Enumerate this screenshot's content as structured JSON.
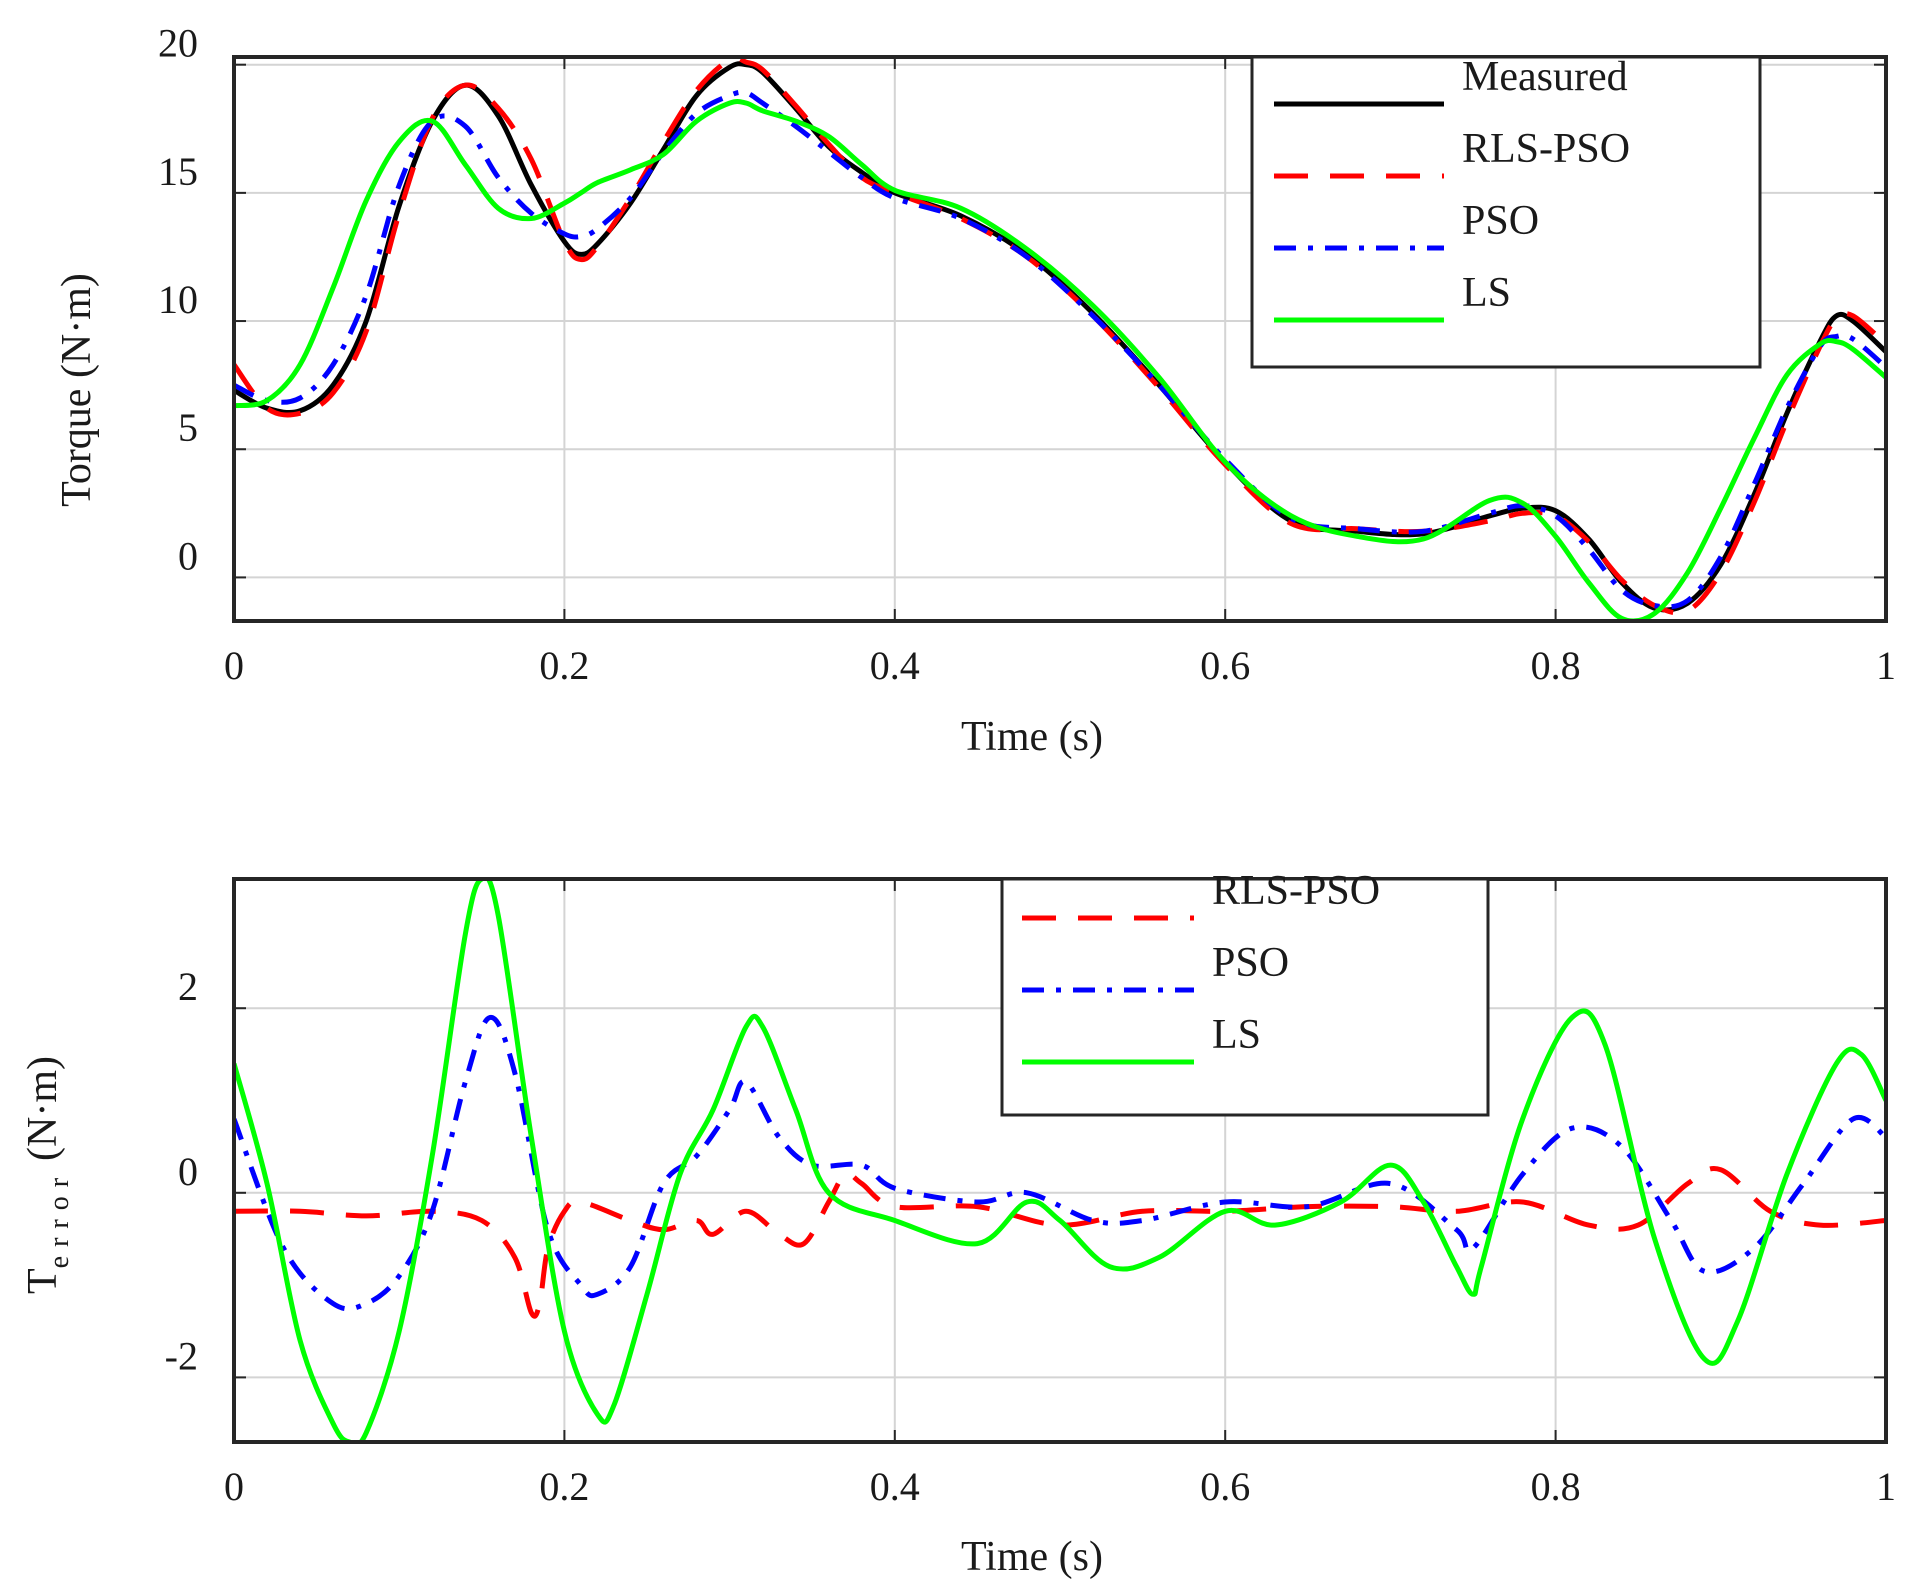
{
  "colors": {
    "measured": "#000000",
    "rls_pso": "#ff0000",
    "pso": "#0000ff",
    "ls": "#00ff00"
  },
  "chart_data": [
    {
      "type": "line",
      "xlabel": "Time (s)",
      "ylabel": "Torque (N·m)",
      "xlim": [
        0,
        1
      ],
      "ylim": [
        -1.7,
        20.3
      ],
      "xticks": [
        0,
        0.2,
        0.4,
        0.6,
        0.8,
        1
      ],
      "xtick_labels": [
        "0",
        "0.2",
        "0.4",
        "0.6",
        "0.8",
        "1"
      ],
      "yticks": [
        0,
        5,
        10,
        15,
        20
      ],
      "ytick_labels": [
        "0",
        "5",
        "10",
        "15",
        "20"
      ],
      "grid": true,
      "legend": {
        "location": "top-right",
        "entries": [
          "Measured",
          "RLS-PSO",
          "PSO",
          "LS"
        ]
      },
      "series": [
        {
          "name": "Measured",
          "color": "#000000",
          "style": "solid",
          "x": [
            0,
            0.02,
            0.04,
            0.06,
            0.08,
            0.1,
            0.12,
            0.14,
            0.16,
            0.18,
            0.2,
            0.21,
            0.22,
            0.24,
            0.26,
            0.28,
            0.3,
            0.31,
            0.32,
            0.34,
            0.36,
            0.38,
            0.4,
            0.44,
            0.48,
            0.52,
            0.56,
            0.6,
            0.64,
            0.68,
            0.72,
            0.76,
            0.78,
            0.8,
            0.82,
            0.84,
            0.86,
            0.88,
            0.9,
            0.92,
            0.94,
            0.96,
            0.97,
            0.98,
            1.0
          ],
          "values": [
            7.3,
            6.6,
            6.5,
            7.5,
            10.0,
            14.5,
            17.8,
            19.2,
            18.0,
            15.3,
            13.1,
            12.6,
            13.0,
            14.6,
            16.7,
            18.8,
            19.9,
            20.0,
            19.7,
            18.3,
            16.8,
            15.8,
            15.0,
            14.1,
            12.6,
            10.3,
            7.5,
            4.5,
            2.2,
            1.8,
            1.7,
            2.4,
            2.7,
            2.6,
            1.5,
            -0.2,
            -1.2,
            -1.0,
            0.5,
            3.2,
            6.4,
            9.2,
            10.2,
            10.0,
            8.8
          ]
        },
        {
          "name": "RLS-PSO",
          "color": "#ff0000",
          "style": "dashed",
          "x": [
            0,
            0.02,
            0.04,
            0.06,
            0.08,
            0.1,
            0.12,
            0.14,
            0.16,
            0.18,
            0.2,
            0.21,
            0.22,
            0.24,
            0.26,
            0.28,
            0.3,
            0.31,
            0.32,
            0.34,
            0.36,
            0.38,
            0.4,
            0.44,
            0.48,
            0.52,
            0.56,
            0.6,
            0.64,
            0.68,
            0.72,
            0.76,
            0.78,
            0.8,
            0.82,
            0.84,
            0.86,
            0.88,
            0.9,
            0.92,
            0.94,
            0.96,
            0.97,
            0.98,
            1.0
          ],
          "values": [
            8.3,
            6.6,
            6.4,
            7.2,
            9.6,
            14.2,
            17.9,
            19.2,
            18.3,
            16.3,
            13.1,
            12.4,
            12.9,
            14.8,
            17.0,
            19.0,
            20.2,
            20.1,
            19.8,
            18.4,
            16.9,
            15.6,
            15.0,
            14.0,
            12.5,
            10.2,
            7.4,
            4.4,
            2.1,
            1.9,
            1.8,
            2.2,
            2.5,
            2.4,
            1.4,
            -0.1,
            -1.1,
            -1.3,
            0.2,
            2.9,
            6.1,
            9.0,
            10.1,
            10.2,
            9.1
          ]
        },
        {
          "name": "PSO",
          "color": "#0000ff",
          "style": "dashdot",
          "x": [
            0,
            0.02,
            0.04,
            0.06,
            0.08,
            0.1,
            0.12,
            0.14,
            0.16,
            0.18,
            0.2,
            0.21,
            0.22,
            0.24,
            0.26,
            0.28,
            0.3,
            0.31,
            0.32,
            0.34,
            0.36,
            0.38,
            0.4,
            0.44,
            0.48,
            0.52,
            0.56,
            0.6,
            0.64,
            0.68,
            0.72,
            0.76,
            0.78,
            0.8,
            0.82,
            0.84,
            0.86,
            0.88,
            0.9,
            0.92,
            0.94,
            0.96,
            0.97,
            0.98,
            1.0
          ],
          "values": [
            7.5,
            6.9,
            7.0,
            8.3,
            11.0,
            15.3,
            17.8,
            17.6,
            15.6,
            14.2,
            13.4,
            13.3,
            13.6,
            14.8,
            16.6,
            18.1,
            18.8,
            18.9,
            18.5,
            17.6,
            16.6,
            15.6,
            14.8,
            14.0,
            12.5,
            10.2,
            7.5,
            4.6,
            2.3,
            1.9,
            1.8,
            2.5,
            2.8,
            2.4,
            1.1,
            -0.5,
            -1.1,
            -0.9,
            0.8,
            3.6,
            6.6,
            9.0,
            9.4,
            9.3,
            8.2
          ]
        },
        {
          "name": "LS",
          "color": "#00ff00",
          "style": "solid",
          "x": [
            0,
            0.02,
            0.04,
            0.06,
            0.08,
            0.1,
            0.12,
            0.14,
            0.16,
            0.18,
            0.2,
            0.21,
            0.22,
            0.24,
            0.26,
            0.28,
            0.3,
            0.31,
            0.32,
            0.34,
            0.36,
            0.38,
            0.4,
            0.44,
            0.48,
            0.52,
            0.56,
            0.6,
            0.64,
            0.68,
            0.72,
            0.76,
            0.78,
            0.8,
            0.82,
            0.84,
            0.86,
            0.88,
            0.9,
            0.92,
            0.94,
            0.96,
            0.97,
            0.98,
            1.0
          ],
          "values": [
            6.7,
            6.9,
            8.3,
            11.3,
            14.7,
            17.0,
            17.8,
            16.1,
            14.4,
            14.0,
            14.6,
            15.0,
            15.4,
            15.9,
            16.5,
            17.8,
            18.5,
            18.5,
            18.2,
            17.8,
            17.2,
            16.1,
            15.1,
            14.4,
            12.8,
            10.6,
            7.8,
            4.5,
            2.4,
            1.6,
            1.5,
            3.0,
            2.9,
            1.6,
            -0.2,
            -1.6,
            -1.4,
            0.2,
            2.7,
            5.4,
            7.9,
            9.1,
            9.2,
            8.9,
            7.8
          ]
        }
      ]
    },
    {
      "type": "line",
      "xlabel": "Time (s)",
      "ylabel": "T",
      "ylabel_subscript": "error",
      "ylabel_unit": "(N·m)",
      "xlim": [
        0,
        1
      ],
      "ylim": [
        -2.7,
        3.4
      ],
      "xticks": [
        0,
        0.2,
        0.4,
        0.6,
        0.8,
        1
      ],
      "xtick_labels": [
        "0",
        "0.2",
        "0.4",
        "0.6",
        "0.8",
        "1"
      ],
      "yticks": [
        -2,
        0,
        2
      ],
      "ytick_labels": [
        "-2",
        "0",
        "2"
      ],
      "grid": true,
      "legend": {
        "location": "top-center",
        "entries": [
          "RLS-PSO",
          "PSO",
          "LS"
        ]
      },
      "series": [
        {
          "name": "RLS-PSO",
          "color": "#ff0000",
          "style": "dashed",
          "x": [
            0,
            0.04,
            0.08,
            0.12,
            0.15,
            0.17,
            0.18,
            0.185,
            0.19,
            0.2,
            0.21,
            0.24,
            0.26,
            0.28,
            0.29,
            0.31,
            0.33,
            0.345,
            0.36,
            0.37,
            0.38,
            0.4,
            0.45,
            0.5,
            0.55,
            0.6,
            0.65,
            0.7,
            0.74,
            0.78,
            0.82,
            0.85,
            0.88,
            0.9,
            0.93,
            0.96,
            1.0
          ],
          "values": [
            -0.2,
            -0.2,
            -0.25,
            -0.2,
            -0.3,
            -0.7,
            -1.3,
            -1.2,
            -0.6,
            -0.2,
            -0.1,
            -0.3,
            -0.4,
            -0.3,
            -0.45,
            -0.2,
            -0.45,
            -0.55,
            -0.1,
            0.2,
            0.1,
            -0.15,
            -0.15,
            -0.35,
            -0.2,
            -0.2,
            -0.15,
            -0.15,
            -0.2,
            -0.1,
            -0.35,
            -0.35,
            0.1,
            0.25,
            -0.2,
            -0.35,
            -0.3
          ]
        },
        {
          "name": "PSO",
          "color": "#0000ff",
          "style": "dashdot",
          "x": [
            0,
            0.03,
            0.06,
            0.08,
            0.1,
            0.12,
            0.14,
            0.155,
            0.17,
            0.19,
            0.21,
            0.22,
            0.24,
            0.26,
            0.28,
            0.3,
            0.31,
            0.33,
            0.35,
            0.38,
            0.4,
            0.45,
            0.48,
            0.52,
            0.55,
            0.6,
            0.65,
            0.7,
            0.74,
            0.75,
            0.78,
            0.81,
            0.84,
            0.87,
            0.89,
            0.92,
            0.95,
            0.98,
            1.0
          ],
          "values": [
            0.8,
            -0.6,
            -1.2,
            -1.2,
            -0.9,
            -0.2,
            1.2,
            1.9,
            1.3,
            -0.4,
            -1.0,
            -1.1,
            -0.8,
            0.1,
            0.4,
            0.9,
            1.2,
            0.6,
            0.3,
            0.3,
            0.05,
            -0.1,
            0.0,
            -0.3,
            -0.3,
            -0.1,
            -0.15,
            0.1,
            -0.4,
            -0.6,
            0.2,
            0.7,
            0.5,
            -0.3,
            -0.85,
            -0.6,
            0.1,
            0.8,
            0.6
          ]
        },
        {
          "name": "LS",
          "color": "#00ff00",
          "style": "solid",
          "x": [
            0,
            0.02,
            0.04,
            0.06,
            0.07,
            0.08,
            0.1,
            0.12,
            0.14,
            0.15,
            0.16,
            0.18,
            0.2,
            0.22,
            0.23,
            0.25,
            0.27,
            0.29,
            0.31,
            0.32,
            0.34,
            0.36,
            0.4,
            0.45,
            0.48,
            0.5,
            0.53,
            0.56,
            0.6,
            0.63,
            0.67,
            0.7,
            0.72,
            0.74,
            0.75,
            0.755,
            0.78,
            0.81,
            0.83,
            0.86,
            0.89,
            0.91,
            0.94,
            0.97,
            0.985,
            1.0
          ],
          "values": [
            1.4,
            0.1,
            -1.6,
            -2.5,
            -2.7,
            -2.6,
            -1.5,
            0.4,
            2.8,
            3.4,
            3.0,
            0.6,
            -1.5,
            -2.4,
            -2.3,
            -1.1,
            0.2,
            0.9,
            1.8,
            1.8,
            0.9,
            0.0,
            -0.3,
            -0.55,
            -0.1,
            -0.3,
            -0.8,
            -0.7,
            -0.2,
            -0.35,
            -0.1,
            0.3,
            -0.1,
            -0.8,
            -1.1,
            -0.8,
            0.8,
            1.9,
            1.6,
            -0.5,
            -1.8,
            -1.4,
            0.2,
            1.4,
            1.5,
            1.0
          ]
        }
      ]
    }
  ]
}
